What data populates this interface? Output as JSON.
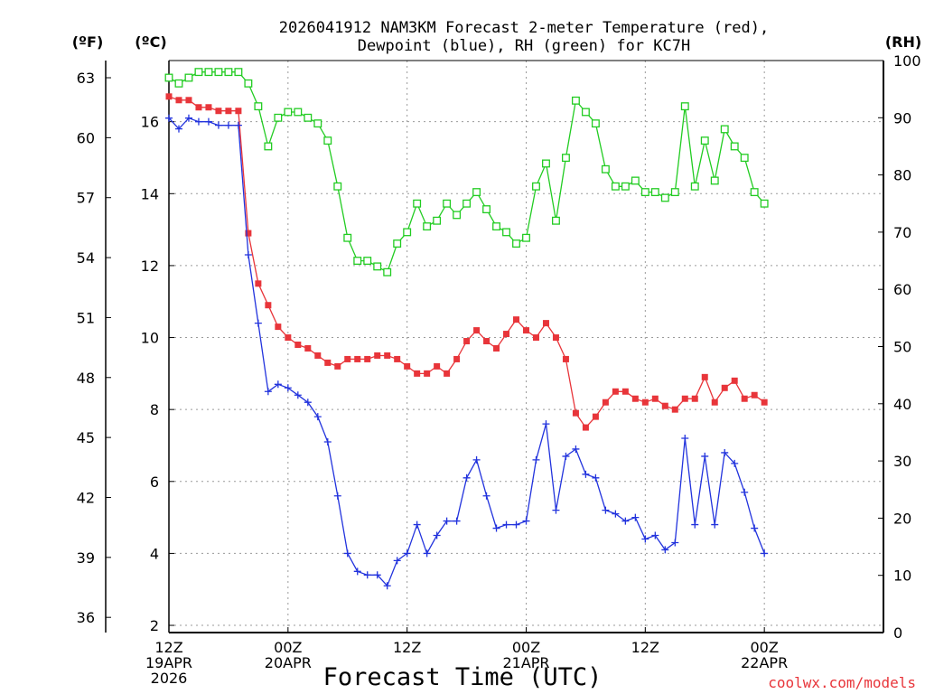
{
  "chart_data": {
    "type": "line",
    "title_line1": "2026041912 NAM3KM Forecast 2-meter Temperature (red),",
    "title_line2": "Dewpoint (blue), RH (green) for KC7H",
    "left_outer_unit": "(ºF)",
    "left_inner_unit": "(ºC)",
    "right_unit": "(RH)",
    "xlabel": "Forecast Time (UTC)",
    "credit": "coolwx.com/models",
    "x_range_hours": [
      0,
      72
    ],
    "y_celsius_range": [
      1.8,
      17.7
    ],
    "y_rh_range": [
      0,
      100
    ],
    "fahrenheit_ticks": [
      "36",
      "39",
      "42",
      "45",
      "48",
      "51",
      "54",
      "57",
      "60",
      "63"
    ],
    "celsius_ticks": [
      "2",
      "4",
      "6",
      "8",
      "10",
      "12",
      "14",
      "16"
    ],
    "rh_ticks": [
      "0",
      "10",
      "20",
      "30",
      "40",
      "50",
      "60",
      "70",
      "80",
      "90",
      "100"
    ],
    "x_ticks": [
      {
        "hour": 0,
        "line1": "12Z",
        "line2": "19APR",
        "line3": "2026"
      },
      {
        "hour": 12,
        "line1": "00Z",
        "line2": "20APR",
        "line3": ""
      },
      {
        "hour": 24,
        "line1": "12Z",
        "line2": "",
        "line3": ""
      },
      {
        "hour": 36,
        "line1": "00Z",
        "line2": "21APR",
        "line3": ""
      },
      {
        "hour": 48,
        "line1": "12Z",
        "line2": "",
        "line3": ""
      },
      {
        "hour": 60,
        "line1": "00Z",
        "line2": "22APR",
        "line3": ""
      }
    ],
    "series": [
      {
        "name": "2-meter Temperature",
        "units": "C",
        "color": "#e8353a",
        "marker": "filled-square",
        "x": [
          0,
          1,
          2,
          3,
          4,
          5,
          6,
          7,
          8,
          9,
          10,
          11,
          12,
          13,
          14,
          15,
          16,
          17,
          18,
          19,
          20,
          21,
          22,
          23,
          24,
          25,
          26,
          27,
          28,
          29,
          30,
          31,
          32,
          33,
          34,
          35,
          36,
          37,
          38,
          39,
          40,
          41,
          42,
          43,
          44,
          45,
          46,
          47,
          48,
          49,
          50,
          51,
          52,
          53,
          54,
          55,
          56,
          57,
          58,
          59,
          60
        ],
        "values": [
          16.7,
          16.6,
          16.6,
          16.4,
          16.4,
          16.3,
          16.3,
          16.3,
          12.9,
          11.5,
          10.9,
          10.3,
          10.0,
          9.8,
          9.7,
          9.5,
          9.3,
          9.2,
          9.4,
          9.4,
          9.4,
          9.5,
          9.5,
          9.4,
          9.2,
          9.0,
          9.0,
          9.2,
          9.0,
          9.4,
          9.9,
          10.2,
          9.9,
          9.7,
          10.1,
          10.5,
          10.2,
          10.0,
          10.4,
          10.0,
          9.4,
          7.9,
          7.5,
          7.8,
          8.2,
          8.5,
          8.5,
          8.3,
          8.2,
          8.3,
          8.1,
          8.0,
          8.3,
          8.3,
          8.9,
          8.2,
          8.6,
          8.8,
          8.3,
          8.4,
          8.2
        ]
      },
      {
        "name": "Dewpoint",
        "units": "C",
        "color": "#2233dd",
        "marker": "plus",
        "x": [
          0,
          1,
          2,
          3,
          4,
          5,
          6,
          7,
          8,
          9,
          10,
          11,
          12,
          13,
          14,
          15,
          16,
          17,
          18,
          19,
          20,
          21,
          22,
          23,
          24,
          25,
          26,
          27,
          28,
          29,
          30,
          31,
          32,
          33,
          34,
          35,
          36,
          37,
          38,
          39,
          40,
          41,
          42,
          43,
          44,
          45,
          46,
          47,
          48,
          49,
          50,
          51,
          52,
          53,
          54,
          55,
          56,
          57,
          58,
          59,
          60
        ],
        "values": [
          16.1,
          15.8,
          16.1,
          16.0,
          16.0,
          15.9,
          15.9,
          15.9,
          12.3,
          10.4,
          8.5,
          8.7,
          8.6,
          8.4,
          8.2,
          7.8,
          7.1,
          5.6,
          4.0,
          3.5,
          3.4,
          3.4,
          3.1,
          3.8,
          4.0,
          4.8,
          4.0,
          4.5,
          4.9,
          4.9,
          6.1,
          6.6,
          5.6,
          4.7,
          4.8,
          4.8,
          4.9,
          6.6,
          7.6,
          5.2,
          6.7,
          6.9,
          6.2,
          6.1,
          5.2,
          5.1,
          4.9,
          5.0,
          4.4,
          4.5,
          4.1,
          4.3,
          7.2,
          4.8,
          6.7,
          4.8,
          6.8,
          6.5,
          5.7,
          4.7,
          4.0
        ]
      },
      {
        "name": "RH",
        "units": "%",
        "color": "#22cc22",
        "marker": "open-square",
        "x": [
          0,
          1,
          2,
          3,
          4,
          5,
          6,
          7,
          8,
          9,
          10,
          11,
          12,
          13,
          14,
          15,
          16,
          17,
          18,
          19,
          20,
          21,
          22,
          23,
          24,
          25,
          26,
          27,
          28,
          29,
          30,
          31,
          32,
          33,
          34,
          35,
          36,
          37,
          38,
          39,
          40,
          41,
          42,
          43,
          44,
          45,
          46,
          47,
          48,
          49,
          50,
          51,
          52,
          53,
          54,
          55,
          56,
          57,
          58,
          59,
          60
        ],
        "values": [
          97,
          96,
          97,
          98,
          98,
          98,
          98,
          98,
          96,
          92,
          85,
          90,
          91,
          91,
          90,
          89,
          86,
          78,
          69,
          65,
          65,
          64,
          63,
          68,
          70,
          75,
          71,
          72,
          75,
          73,
          75,
          77,
          74,
          71,
          70,
          68,
          69,
          78,
          82,
          72,
          83,
          93,
          91,
          89,
          81,
          78,
          78,
          79,
          77,
          77,
          76,
          77,
          92,
          78,
          86,
          79,
          88,
          85,
          83,
          77,
          75
        ]
      }
    ]
  }
}
